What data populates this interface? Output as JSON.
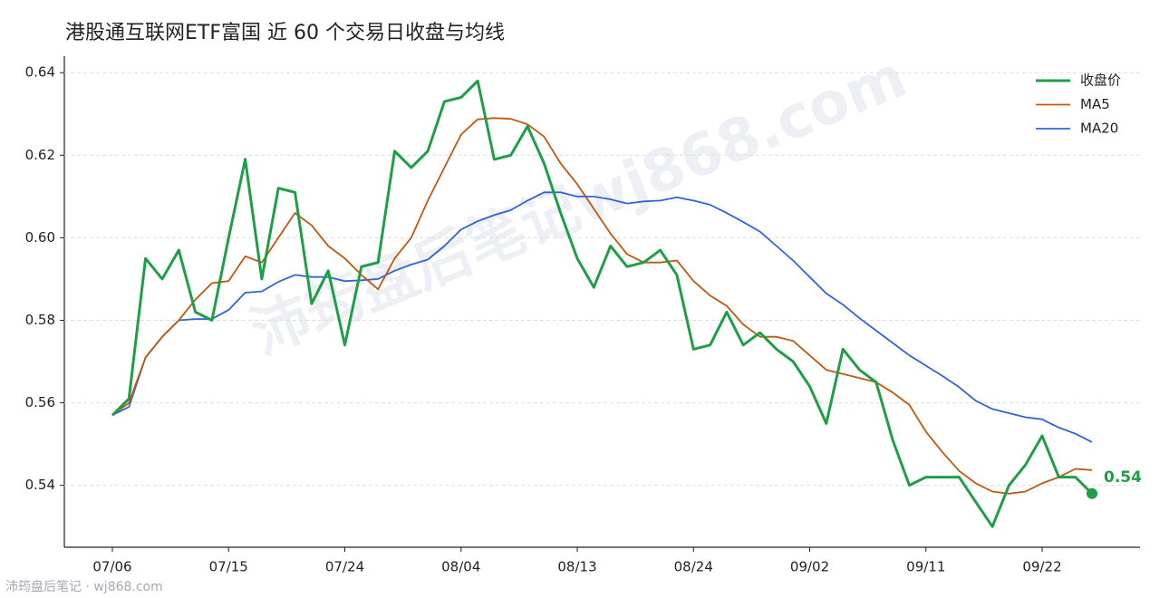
{
  "chart_data": {
    "type": "line",
    "title": "港股通互联网ETF富国 近 60 个交易日收盘与均线",
    "categories": [
      "07/06",
      null,
      null,
      null,
      null,
      null,
      null,
      "07/15",
      null,
      null,
      null,
      null,
      null,
      null,
      "07/24",
      null,
      null,
      null,
      null,
      null,
      null,
      "08/04",
      null,
      null,
      null,
      null,
      null,
      null,
      "08/13",
      null,
      null,
      null,
      null,
      null,
      null,
      "08/24",
      null,
      null,
      null,
      null,
      null,
      null,
      "09/02",
      null,
      null,
      null,
      null,
      null,
      null,
      "09/11",
      null,
      null,
      null,
      null,
      null,
      null,
      "09/22",
      null,
      null,
      null
    ],
    "series": [
      {
        "name": "收盘价",
        "color": "#1e9e46",
        "width": 3,
        "values": [
          0.557,
          0.561,
          0.595,
          0.59,
          0.597,
          0.582,
          0.58,
          0.6,
          0.619,
          0.59,
          0.612,
          0.611,
          0.584,
          0.592,
          0.574,
          0.593,
          0.594,
          0.621,
          0.617,
          0.621,
          0.633,
          0.634,
          0.638,
          0.619,
          0.62,
          0.627,
          0.618,
          0.606,
          0.595,
          0.588,
          0.598,
          0.593,
          0.594,
          0.597,
          0.591,
          0.573,
          0.574,
          0.582,
          0.574,
          0.577,
          0.573,
          0.57,
          0.564,
          0.555,
          0.573,
          0.568,
          0.565,
          0.551,
          0.54,
          0.542,
          0.542,
          0.542,
          0.536,
          0.53,
          0.54,
          0.545,
          0.552,
          0.542,
          0.542,
          0.538
        ]
      },
      {
        "name": "MA5",
        "color": "#c0580f",
        "width": 1.8,
        "values": [
          0.557,
          0.56,
          0.571,
          0.576,
          0.58,
          0.585,
          0.589,
          0.5895,
          0.5955,
          0.594,
          0.6,
          0.606,
          0.603,
          0.598,
          0.595,
          0.591,
          0.5875,
          0.595,
          0.6,
          0.609,
          0.617,
          0.625,
          0.6287,
          0.629,
          0.6288,
          0.6275,
          0.6245,
          0.618,
          0.613,
          0.607,
          0.601,
          0.596,
          0.594,
          0.594,
          0.5945,
          0.5895,
          0.586,
          0.5835,
          0.579,
          0.576,
          0.576,
          0.575,
          0.5715,
          0.568,
          0.567,
          0.566,
          0.565,
          0.5625,
          0.5595,
          0.553,
          0.548,
          0.5435,
          0.5405,
          0.5385,
          0.538,
          0.5385,
          0.5405,
          0.542,
          0.544,
          0.5437
        ]
      },
      {
        "name": "MA20",
        "color": "#2f64d8",
        "width": 1.8,
        "values": [
          0.557,
          0.559,
          0.571,
          0.576,
          0.58,
          0.5803,
          0.5803,
          0.5825,
          0.5867,
          0.587,
          0.5893,
          0.591,
          0.5905,
          0.5905,
          0.5895,
          0.5897,
          0.59,
          0.592,
          0.5935,
          0.5947,
          0.598,
          0.602,
          0.604,
          0.6055,
          0.6067,
          0.609,
          0.611,
          0.611,
          0.61,
          0.61,
          0.6093,
          0.6083,
          0.6088,
          0.609,
          0.6098,
          0.609,
          0.608,
          0.606,
          0.6038,
          0.6015,
          0.598,
          0.5945,
          0.5905,
          0.5865,
          0.5838,
          0.5805,
          0.5775,
          0.5745,
          0.5715,
          0.569,
          0.5665,
          0.5638,
          0.5605,
          0.5585,
          0.5575,
          0.5565,
          0.556,
          0.554,
          0.5525,
          0.5505
        ]
      }
    ],
    "ylim": [
      0.525,
      0.644
    ],
    "yticks": [
      0.54,
      0.56,
      0.58,
      {
        "value": 0.6,
        "label": "0.60"
      },
      0.62,
      0.64
    ],
    "grid": true,
    "legend": "upper right",
    "end_label": "0.54",
    "watermark": "沛筠盘后笔记wj868.com",
    "footer": "沛筠盘后笔记 · wj868.com"
  }
}
